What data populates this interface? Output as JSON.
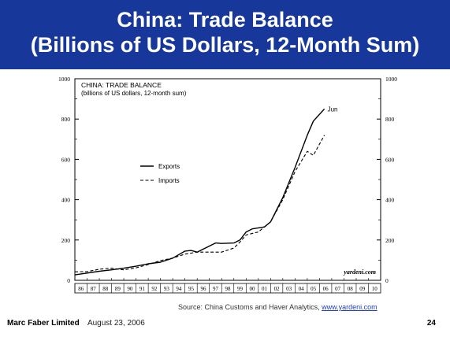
{
  "slide": {
    "title_line1": "China: Trade Balance",
    "title_line2": "(Billions of US Dollars, 12-Month Sum)",
    "source_prefix": "Source: China Customs and Haver Analytics, ",
    "source_link": "www.yardeni.com",
    "footer_company": "Marc Faber Limited",
    "footer_date": "August 23, 2006",
    "page_number": "24",
    "band_color": "#17379a"
  },
  "chart_data": {
    "type": "line",
    "title": "CHINA: TRADE BALANCE",
    "subtitle": "(billions of US dollars, 12-month sum)",
    "watermark": "yardeni.com",
    "end_annotation": "Jun",
    "xlim": [
      1986,
      2011
    ],
    "ylim": [
      0,
      1000
    ],
    "y_ticks": [
      0,
      200,
      400,
      600,
      800,
      1000
    ],
    "x_tick_labels": [
      "86",
      "87",
      "88",
      "89",
      "90",
      "91",
      "92",
      "93",
      "94",
      "95",
      "96",
      "97",
      "98",
      "99",
      "00",
      "01",
      "02",
      "03",
      "04",
      "05",
      "06",
      "07",
      "08",
      "09",
      "10"
    ],
    "grid": false,
    "legend_position": "left-middle",
    "series": [
      {
        "name": "Exports",
        "style": "solid",
        "x": [
          1986,
          1987,
          1988,
          1989,
          1990,
          1991,
          1992,
          1993,
          1994,
          1995,
          1995.5,
          1996,
          1997,
          1997.5,
          1998,
          1999,
          1999.5,
          2000,
          2000.5,
          2001,
          2001.5,
          2002,
          2003,
          2004,
          2005,
          2005.5,
          2006.4
        ],
        "y": [
          27,
          36,
          45,
          52,
          60,
          70,
          82,
          90,
          110,
          145,
          148,
          140,
          170,
          185,
          183,
          185,
          200,
          240,
          255,
          260,
          265,
          290,
          410,
          560,
          720,
          790,
          850
        ]
      },
      {
        "name": "Imports",
        "style": "dashed",
        "x": [
          1986,
          1987,
          1988,
          1989,
          1990,
          1991,
          1992,
          1993,
          1994,
          1995,
          1996,
          1997,
          1998,
          1999,
          1999.5,
          2000,
          2001,
          2002,
          2003,
          2004,
          2005,
          2005.5,
          2006.4
        ],
        "y": [
          42,
          43,
          55,
          60,
          52,
          62,
          78,
          98,
          110,
          130,
          140,
          140,
          140,
          160,
          190,
          225,
          240,
          290,
          400,
          540,
          640,
          620,
          720
        ]
      }
    ]
  }
}
